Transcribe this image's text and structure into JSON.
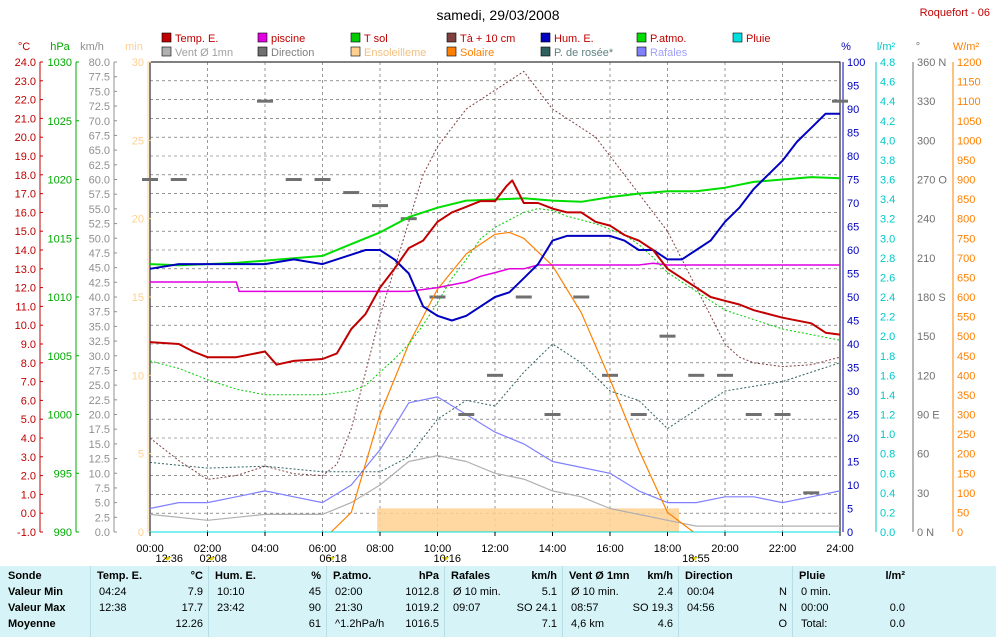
{
  "title": "samedi, 29/03/2008",
  "station": "Roquefort - 06",
  "legend": [
    {
      "label": "Temp. E.",
      "color": "#c00000"
    },
    {
      "label": "piscine",
      "color": "#e000e0"
    },
    {
      "label": "T sol",
      "color": "#00cc00"
    },
    {
      "label": "Tà + 10 cm",
      "color": "#804040"
    },
    {
      "label": "Hum. E.",
      "color": "#0000c0"
    },
    {
      "label": "P.atmo.",
      "color": "#00dd00"
    },
    {
      "label": "Pluie",
      "color": "#00e0e0"
    },
    {
      "label": "Vent Ø 1mn",
      "color": "#b0b0b0"
    },
    {
      "label": "Direction",
      "color": "#707070"
    },
    {
      "label": "Ensoleilleme",
      "color": "#ffd090"
    },
    {
      "label": "Solaire",
      "color": "#ff8000"
    },
    {
      "label": "P. de rosée*",
      "color": "#306060"
    },
    {
      "label": "Rafales",
      "color": "#8080ff"
    }
  ],
  "axes_left": [
    {
      "unit": "°C",
      "color": "#c00000",
      "ticks": [
        "24.0",
        "23.0",
        "22.0",
        "21.0",
        "20.0",
        "19.0",
        "18.0",
        "17.0",
        "16.0",
        "15.0",
        "14.0",
        "13.0",
        "12.0",
        "11.0",
        "10.0",
        "9.0",
        "8.0",
        "7.0",
        "6.0",
        "5.0",
        "4.0",
        "3.0",
        "2.0",
        "1.0",
        "0.0",
        "-1.0"
      ]
    },
    {
      "unit": "hPa",
      "color": "#00aa00",
      "ticks": [
        "1030",
        "1025",
        "1020",
        "1015",
        "1010",
        "1005",
        "1000",
        "995",
        "990"
      ]
    },
    {
      "unit": "km/h",
      "color": "#909090",
      "ticks": [
        "80.0",
        "77.5",
        "75.0",
        "72.5",
        "70.0",
        "67.5",
        "65.0",
        "62.5",
        "60.0",
        "57.5",
        "55.0",
        "52.5",
        "50.0",
        "47.5",
        "45.0",
        "42.5",
        "40.0",
        "37.5",
        "35.0",
        "32.5",
        "30.0",
        "27.5",
        "25.0",
        "22.5",
        "20.0",
        "17.5",
        "15.0",
        "12.5",
        "10.0",
        "7.5",
        "5.0",
        "2.5",
        "0.0"
      ]
    },
    {
      "unit": "min",
      "color": "#ffd090",
      "ticks": [
        "30",
        "25",
        "20",
        "15",
        "10",
        "5",
        "0"
      ]
    }
  ],
  "axes_right": [
    {
      "unit": "%",
      "color": "#0000c0",
      "ticks": [
        "100",
        "95",
        "90",
        "85",
        "80",
        "75",
        "70",
        "65",
        "60",
        "55",
        "50",
        "45",
        "40",
        "35",
        "30",
        "25",
        "20",
        "15",
        "10",
        "5",
        "0"
      ]
    },
    {
      "unit": "l/m²",
      "color": "#00c8c8",
      "ticks": [
        "4.8",
        "4.6",
        "4.4",
        "4.2",
        "4.0",
        "3.8",
        "3.6",
        "3.4",
        "3.2",
        "3.0",
        "2.8",
        "2.6",
        "2.4",
        "2.2",
        "2.0",
        "1.8",
        "1.6",
        "1.4",
        "1.2",
        "1.0",
        "0.8",
        "0.6",
        "0.4",
        "0.2",
        "0.0"
      ]
    },
    {
      "unit": "°",
      "color": "#707070",
      "ticks": [
        "360 N",
        "330",
        "300",
        "270 O",
        "240",
        "210",
        "180 S",
        "150",
        "120",
        "90 E",
        "60",
        "30",
        "0 N"
      ]
    },
    {
      "unit": "W/m²",
      "color": "#ff8000",
      "ticks": [
        "1200",
        "1150",
        "1100",
        "1050",
        "1000",
        "950",
        "900",
        "850",
        "800",
        "750",
        "700",
        "650",
        "600",
        "550",
        "500",
        "450",
        "400",
        "350",
        "300",
        "250",
        "200",
        "150",
        "100",
        "50",
        "0"
      ]
    }
  ],
  "x_ticks": [
    "00:00",
    "02:00",
    "04:00",
    "06:00",
    "08:00",
    "10:00",
    "12:00",
    "14:00",
    "16:00",
    "18:00",
    "20:00",
    "22:00",
    "24:00"
  ],
  "markers": [
    {
      "label": "12:36",
      "hour": 0.6
    },
    {
      "label": "02:08",
      "hour": 2.13
    },
    {
      "label": "06:18",
      "hour": 6.3
    },
    {
      "label": "10:16",
      "hour": 10.27
    },
    {
      "label": "18:55",
      "hour": 18.92
    }
  ],
  "chart_data": {
    "type": "line",
    "title": "samedi, 29/03/2008",
    "x_range": [
      0,
      24
    ],
    "series": [
      {
        "name": "Temp. E.",
        "unit": "°C",
        "x": [
          0,
          1,
          1.5,
          2,
          3,
          4,
          4.4,
          5,
          6,
          6.5,
          7,
          7.5,
          8,
          8.5,
          9,
          9.5,
          10,
          10.5,
          11,
          11.5,
          12,
          12.4,
          12.6,
          13,
          13.5,
          14,
          14.5,
          15,
          15.5,
          16,
          16.5,
          17,
          17.5,
          18,
          18.5,
          19,
          19.5,
          20,
          20.5,
          21,
          22,
          23,
          23.5,
          24
        ],
        "y": [
          9.1,
          9.0,
          8.6,
          8.3,
          8.3,
          8.6,
          7.9,
          8.1,
          8.2,
          8.5,
          9.8,
          10.6,
          12.0,
          13.0,
          14.1,
          14.5,
          15.5,
          16.0,
          16.3,
          16.6,
          16.6,
          17.4,
          17.7,
          16.5,
          16.5,
          16.2,
          16.0,
          16.0,
          15.5,
          15.3,
          14.8,
          14.5,
          14.0,
          13.0,
          12.5,
          12.0,
          11.5,
          11.3,
          11.1,
          10.8,
          10.4,
          10.1,
          9.6,
          9.5
        ]
      },
      {
        "name": "piscine",
        "unit": "°C",
        "x": [
          0,
          3,
          3.1,
          4,
          6,
          8,
          8.5,
          9,
          10,
          11,
          11.5,
          12,
          12.5,
          13,
          13.5,
          14,
          14.5,
          15,
          15.5,
          16,
          16.5,
          17,
          17.5,
          18,
          20,
          22,
          24
        ],
        "y": [
          12.3,
          12.3,
          11.8,
          11.8,
          11.8,
          11.8,
          11.8,
          11.8,
          12.0,
          12.3,
          12.6,
          12.8,
          13.0,
          13.0,
          13.2,
          13.2,
          13.2,
          13.2,
          13.2,
          13.2,
          13.2,
          13.2,
          13.3,
          13.2,
          13.2,
          13.2,
          13.2
        ]
      },
      {
        "name": "T sol",
        "unit": "°C",
        "x": [
          0,
          1,
          2,
          3,
          4,
          5,
          6,
          6.5,
          7,
          7.5,
          8,
          8.5,
          9,
          9.5,
          10,
          10.5,
          11,
          11.5,
          12,
          12.5,
          13,
          13.5,
          14,
          14.5,
          15,
          15.5,
          16,
          16.5,
          17,
          17.5,
          18,
          19,
          20,
          21,
          22,
          23,
          24
        ],
        "y": [
          8.1,
          7.7,
          7.1,
          6.6,
          6.3,
          6.3,
          6.3,
          6.4,
          6.5,
          6.8,
          7.5,
          8.2,
          9.0,
          10.0,
          11.2,
          12.5,
          13.5,
          14.6,
          15.2,
          15.6,
          16.0,
          16.2,
          16.1,
          15.8,
          15.6,
          15.4,
          15.1,
          14.8,
          14.3,
          13.6,
          12.8,
          11.8,
          10.8,
          10.3,
          9.8,
          9.5,
          9.2
        ]
      },
      {
        "name": "Tà + 10 cm",
        "unit": "°C",
        "x": [
          0,
          1,
          2,
          3,
          4,
          5,
          6,
          6.5,
          7,
          7.5,
          8,
          8.5,
          9,
          9.5,
          10,
          10.5,
          11,
          11.5,
          12,
          12.5,
          13,
          13.5,
          14,
          14.5,
          15,
          15.5,
          16,
          16.5,
          17,
          17.5,
          18,
          18.5,
          19,
          19.5,
          20,
          20.5,
          21,
          22,
          23,
          24
        ],
        "y": [
          4.0,
          2.8,
          1.8,
          2.0,
          2.5,
          2.1,
          2.0,
          2.6,
          4.5,
          7.5,
          10.5,
          13.0,
          15.5,
          18.0,
          19.5,
          20.5,
          21.5,
          22.0,
          22.5,
          23.0,
          23.5,
          22.5,
          21.5,
          21.0,
          20.5,
          20.0,
          19.0,
          18.0,
          17.0,
          16.0,
          15.0,
          13.5,
          12.0,
          10.5,
          9.0,
          8.3,
          8.0,
          7.8,
          7.9,
          8.3
        ]
      },
      {
        "name": "Hum. E.",
        "unit": "%",
        "x": [
          0,
          1,
          2,
          3,
          4,
          5,
          6,
          7,
          7.5,
          8,
          8.5,
          9,
          9.5,
          10,
          10.5,
          11,
          11.5,
          12,
          12.5,
          13,
          13.5,
          14,
          14.5,
          15,
          15.5,
          16,
          16.5,
          17,
          17.5,
          18,
          18.5,
          19,
          19.5,
          20,
          20.5,
          21,
          21.5,
          22,
          22.5,
          23,
          23.5,
          24
        ],
        "y": [
          56,
          57,
          57,
          57,
          57,
          58,
          57,
          59,
          60,
          60,
          58,
          55,
          48,
          46,
          45,
          46,
          48,
          50,
          51,
          54,
          57,
          62,
          63,
          63,
          63,
          63,
          62,
          60,
          60,
          58,
          58,
          60,
          62,
          66,
          69,
          73,
          76,
          79,
          83,
          86,
          89,
          89
        ]
      },
      {
        "name": "P.atmo.",
        "unit": "hPa",
        "x": [
          0,
          1,
          2,
          3,
          4,
          5,
          6,
          7,
          8,
          9,
          10,
          11,
          12,
          13,
          14,
          15,
          16,
          17,
          18,
          19,
          20,
          21,
          22,
          23,
          24
        ],
        "y": [
          1012.8,
          1012.7,
          1012.8,
          1012.9,
          1013.1,
          1013.3,
          1013.5,
          1014.5,
          1015.5,
          1016.8,
          1017.6,
          1018.2,
          1018.3,
          1018.4,
          1018.2,
          1018.1,
          1018.5,
          1018.8,
          1019.0,
          1019.0,
          1019.3,
          1019.8,
          1020.0,
          1020.2,
          1020.1
        ]
      },
      {
        "name": "Pluie",
        "unit": "l/m²",
        "x": [
          0,
          24
        ],
        "y": [
          0.0,
          0.0
        ]
      },
      {
        "name": "Vent Ø 1mn",
        "unit": "km/h",
        "x": [
          0,
          2,
          4,
          6,
          7,
          8,
          9,
          10,
          11,
          12,
          13,
          14,
          15,
          16,
          17,
          18,
          19,
          20,
          22,
          24
        ],
        "y": [
          3,
          2,
          3,
          3,
          5,
          8,
          12,
          13,
          12,
          10,
          9,
          7,
          6,
          4,
          3,
          2,
          1,
          1,
          1,
          1
        ]
      },
      {
        "name": "Direction",
        "unit": "°",
        "x": [
          0,
          1,
          4,
          5,
          6,
          7,
          8,
          9,
          10,
          11,
          12,
          13,
          14,
          15,
          16,
          17,
          18,
          19,
          20,
          21,
          22,
          23,
          24
        ],
        "y": [
          270,
          270,
          330,
          270,
          270,
          260,
          250,
          240,
          180,
          90,
          120,
          180,
          90,
          180,
          120,
          90,
          150,
          120,
          120,
          90,
          90,
          30,
          330
        ]
      },
      {
        "name": "Ensoleilleme",
        "unit": "min",
        "x": [
          7.9,
          18.4
        ],
        "y": [
          1,
          1
        ]
      },
      {
        "name": "Solaire",
        "unit": "W/m²",
        "x": [
          6.3,
          7,
          8,
          9,
          10,
          11,
          12,
          12.5,
          13,
          14,
          15,
          16,
          17,
          18,
          18.9
        ],
        "y": [
          0,
          50,
          300,
          480,
          620,
          710,
          760,
          765,
          750,
          680,
          560,
          390,
          210,
          50,
          0
        ]
      },
      {
        "name": "P. de rosée*",
        "unit": "°C",
        "x": [
          0,
          2,
          4,
          6,
          8,
          9,
          10,
          11,
          12,
          13,
          14,
          15,
          16,
          17,
          18,
          20,
          22,
          24
        ],
        "y": [
          2.7,
          2.4,
          2.5,
          2.2,
          2.2,
          3.0,
          5.0,
          6.0,
          5.7,
          7.5,
          9.0,
          8.0,
          6.5,
          6.0,
          4.5,
          6.5,
          7.0,
          8.0
        ]
      },
      {
        "name": "Rafales",
        "unit": "km/h",
        "x": [
          0,
          1,
          2,
          3,
          4,
          5,
          6,
          7,
          8,
          9,
          10,
          11,
          12,
          13,
          14,
          15,
          16,
          17,
          18,
          19,
          20,
          21,
          22,
          23,
          24
        ],
        "y": [
          4,
          5,
          5,
          6,
          7,
          6,
          5,
          8,
          14,
          22,
          23,
          20,
          17,
          15,
          12,
          11,
          10,
          7,
          5,
          5,
          6,
          6,
          5,
          6,
          7
        ]
      }
    ]
  },
  "stats": {
    "headers": [
      "Sonde",
      "Temp. E.",
      "°C",
      "Hum. E.",
      "%",
      "P.atmo.",
      "hPa",
      "Rafales",
      "km/h",
      "Vent Ø 1mn",
      "km/h",
      "Direction",
      "Pluie",
      "l/m²"
    ],
    "row_labels": [
      "Valeur Min",
      "Valeur Max",
      "Moyenne"
    ],
    "temp": [
      [
        "04:24",
        "7.9"
      ],
      [
        "12:38",
        "17.7"
      ],
      [
        "",
        "12.26"
      ]
    ],
    "hum": [
      [
        "10:10",
        "45"
      ],
      [
        "23:42",
        "90"
      ],
      [
        "",
        "61"
      ]
    ],
    "patm": [
      [
        "02:00",
        "1012.8"
      ],
      [
        "21:30",
        "1019.2"
      ],
      [
        "^1.2hPa/h",
        "1016.5"
      ]
    ],
    "raf": [
      [
        "Ø 10 min.",
        "5.1"
      ],
      [
        "09:07",
        "SO 24.1"
      ],
      [
        "",
        "7.1"
      ]
    ],
    "vent": [
      [
        "Ø 10 min.",
        "2.4"
      ],
      [
        "08:57",
        "SO 19.3"
      ],
      [
        "4,6 km",
        "4.6"
      ]
    ],
    "dir": [
      [
        "00:04",
        "N"
      ],
      [
        "04:56",
        "N"
      ],
      [
        "",
        "O"
      ]
    ],
    "pluie": [
      [
        "0 min.",
        ""
      ],
      [
        "00:00",
        "0.0"
      ],
      [
        "Total:",
        "0.0"
      ]
    ]
  }
}
